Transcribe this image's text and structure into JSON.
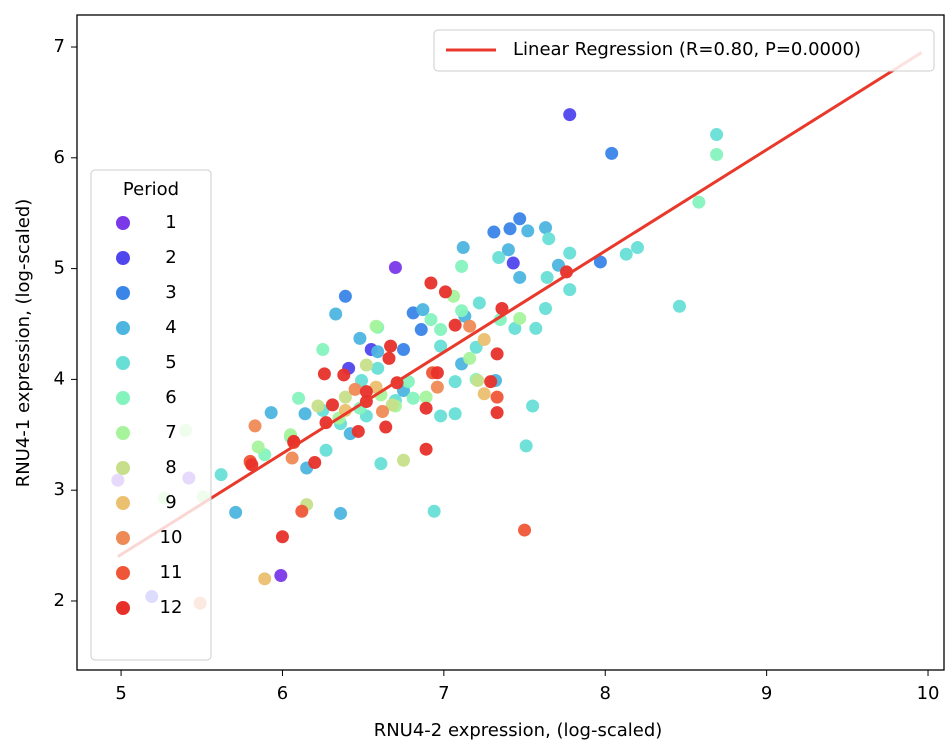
{
  "chart_data": {
    "type": "scatter",
    "x_label": "RNU4-2 expression, (log-scaled)",
    "y_label": "RNU4-1 expression, (log-scaled)",
    "xlim": [
      4.727,
      10.099
    ],
    "ylim": [
      1.377,
      7.289
    ],
    "xticks": [
      5,
      6,
      7,
      8,
      9,
      10
    ],
    "yticks": [
      2,
      3,
      4,
      5,
      6,
      7
    ],
    "legend_title": "Period",
    "legend": "lower left",
    "series": [
      {
        "name": "1",
        "color": "#7a38e8",
        "x": [
          6.7,
          5.99,
          4.98,
          5.42
        ],
        "y": [
          5.01,
          2.23,
          3.09,
          3.11
        ]
      },
      {
        "name": "2",
        "color": "#5046ee",
        "x": [
          7.78,
          7.43,
          6.41,
          6.55,
          5.19
        ],
        "y": [
          6.39,
          5.05,
          4.1,
          4.27,
          2.04
        ]
      },
      {
        "name": "3",
        "color": "#3a85e8",
        "x": [
          8.04,
          7.47,
          7.31,
          7.41,
          6.39,
          6.81,
          6.86,
          6.75,
          7.97
        ],
        "y": [
          6.04,
          5.45,
          5.33,
          5.36,
          4.75,
          4.6,
          4.45,
          4.27,
          5.06
        ]
      },
      {
        "name": "4",
        "color": "#4cb5e0",
        "x": [
          7.63,
          7.52,
          7.12,
          7.4,
          7.71,
          7.47,
          6.33,
          6.48,
          6.59,
          6.87,
          7.13,
          7.11,
          7.32,
          5.93,
          6.14,
          6.15,
          5.71,
          6.36,
          6.75,
          6.42
        ],
        "y": [
          5.37,
          5.34,
          5.19,
          5.17,
          5.03,
          4.92,
          4.59,
          4.37,
          4.25,
          4.63,
          4.57,
          4.14,
          3.99,
          3.7,
          3.69,
          3.2,
          2.8,
          2.79,
          3.9,
          3.51
        ]
      },
      {
        "name": "5",
        "color": "#68dfd6",
        "x": [
          8.69,
          8.2,
          8.13,
          8.46,
          7.78,
          7.78,
          7.65,
          7.64,
          7.63,
          7.57,
          7.55,
          7.51,
          6.94,
          6.61,
          6.27,
          5.62,
          6.98,
          7.07,
          6.98,
          7.07,
          7.22,
          7.34,
          7.44,
          7.2,
          6.7,
          6.59,
          6.52,
          6.49,
          6.36,
          6.25
        ],
        "y": [
          6.21,
          5.19,
          5.13,
          4.66,
          5.14,
          4.81,
          5.27,
          4.92,
          4.64,
          4.46,
          3.76,
          3.4,
          2.81,
          3.24,
          3.36,
          3.14,
          4.3,
          3.98,
          3.67,
          3.69,
          4.69,
          5.1,
          4.46,
          4.29,
          3.81,
          4.1,
          3.67,
          3.99,
          3.6,
          3.72
        ]
      },
      {
        "name": "6",
        "color": "#85f3bd",
        "x": [
          8.69,
          8.58,
          7.11,
          6.92,
          6.59,
          6.25,
          6.1,
          6.05,
          5.89,
          7.11,
          7.35,
          7.2,
          6.81,
          6.48,
          6.78,
          6.98
        ],
        "y": [
          6.03,
          5.6,
          5.02,
          4.54,
          4.47,
          4.27,
          3.83,
          3.48,
          3.32,
          4.62,
          4.54,
          4.0,
          3.83,
          3.74,
          3.98,
          4.45
        ]
      },
      {
        "name": "7",
        "color": "#a7f39c",
        "x": [
          7.47,
          7.16,
          6.89,
          6.61,
          6.58,
          6.05,
          5.85,
          7.06,
          6.7,
          6.35,
          5.27,
          5.4,
          5.51
        ],
        "y": [
          4.55,
          4.19,
          3.84,
          3.86,
          4.48,
          3.5,
          3.39,
          4.75,
          3.76,
          3.65,
          2.93,
          3.54,
          2.94
        ]
      },
      {
        "name": "8",
        "color": "#c7df8a",
        "x": [
          6.75,
          6.15,
          6.39,
          6.22,
          6.52,
          6.68,
          7.21
        ],
        "y": [
          3.27,
          2.87,
          3.84,
          3.76,
          4.13,
          3.77,
          3.99
        ]
      },
      {
        "name": "9",
        "color": "#ebc06f",
        "x": [
          5.89,
          7.25,
          7.25,
          6.58,
          6.39,
          5.8
        ],
        "y": [
          2.2,
          3.87,
          4.36,
          3.93,
          3.72,
          3.25
        ]
      },
      {
        "name": "10",
        "color": "#ee8a55",
        "x": [
          6.06,
          5.83,
          6.62,
          6.96,
          7.16,
          5.49,
          6.45
        ],
        "y": [
          3.29,
          3.58,
          3.71,
          3.93,
          4.48,
          1.98,
          3.91
        ]
      },
      {
        "name": "11",
        "color": "#ef5638",
        "x": [
          7.5,
          6.12,
          5.8,
          6.07,
          7.33,
          6.93
        ],
        "y": [
          2.64,
          2.81,
          3.26,
          3.43,
          3.84,
          4.06
        ]
      },
      {
        "name": "12",
        "color": "#e8302a",
        "x": [
          7.76,
          7.36,
          7.33,
          7.29,
          7.33,
          7.07,
          7.01,
          6.92,
          6.96,
          6.89,
          6.89,
          6.67,
          6.66,
          6.71,
          6.64,
          6.52,
          6.52,
          6.47,
          6.38,
          6.31,
          6.26,
          6.27,
          6.2,
          6.07,
          6.0,
          5.81
        ],
        "y": [
          4.97,
          4.64,
          4.23,
          3.98,
          3.7,
          4.49,
          4.79,
          4.87,
          4.06,
          3.74,
          3.37,
          4.3,
          4.19,
          3.97,
          3.57,
          3.89,
          3.8,
          3.53,
          4.04,
          3.77,
          4.05,
          3.61,
          3.25,
          3.44,
          2.58,
          3.23
        ]
      }
    ],
    "regression": {
      "name": "Linear Regression (R=0.80, P=0.0000)",
      "color": "#e8392b",
      "x": [
        4.98,
        9.96
      ],
      "y": [
        2.4,
        6.95
      ]
    },
    "regression_legend": "upper right"
  }
}
